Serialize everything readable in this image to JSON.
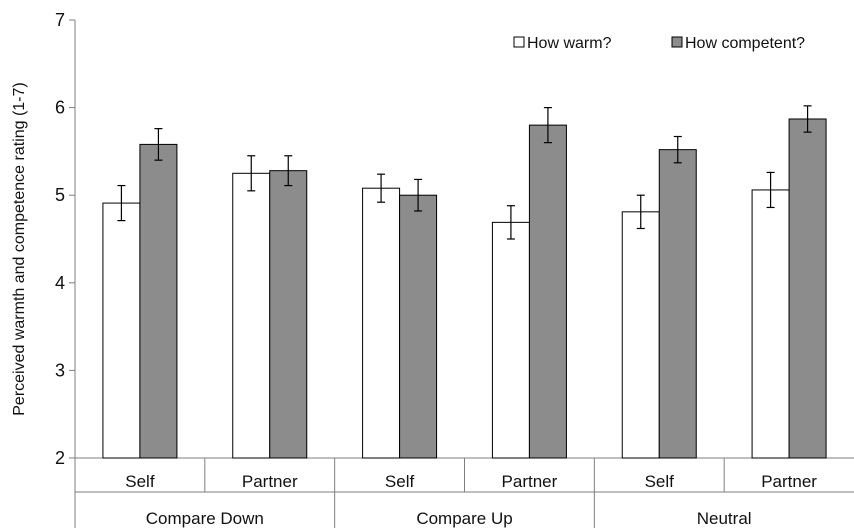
{
  "chart_data": {
    "type": "bar",
    "title": "",
    "ylabel": "Perceived warmth and competence rating (1-7)",
    "xlabel": "",
    "ylim": [
      2,
      7
    ],
    "yticks": [
      2,
      3,
      4,
      5,
      6,
      7
    ],
    "grid": false,
    "legend_position": "top-right",
    "groups": [
      "Compare Down",
      "Compare Up",
      "Neutral"
    ],
    "categories": [
      "Self",
      "Partner",
      "Self",
      "Partner",
      "Self",
      "Partner"
    ],
    "series": [
      {
        "name": "How warm?",
        "color": "#ffffff",
        "values": [
          4.91,
          5.25,
          5.08,
          4.69,
          4.81,
          5.06
        ],
        "error": [
          0.2,
          0.2,
          0.16,
          0.19,
          0.19,
          0.2
        ]
      },
      {
        "name": "How competent?",
        "color": "#8c8c8c",
        "values": [
          5.58,
          5.28,
          5.0,
          5.8,
          5.52,
          5.87
        ],
        "error": [
          0.18,
          0.17,
          0.18,
          0.2,
          0.15,
          0.15
        ]
      }
    ]
  }
}
